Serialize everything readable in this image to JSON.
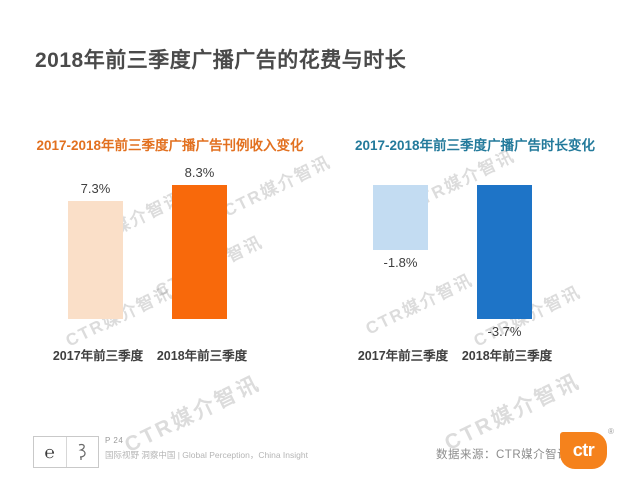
{
  "page": {
    "title": "2018年前三季度广播广告的花费与时长"
  },
  "watermark": {
    "text": "CTR媒介智讯"
  },
  "chart_data": [
    {
      "type": "bar",
      "title": "2017-2018年前三季度广播广告刊例收入变化",
      "title_color": "#e2701f",
      "categories": [
        "2017年前三季度",
        "2018年前三季度"
      ],
      "values": [
        7.3,
        8.3
      ],
      "value_labels": [
        "7.3%",
        "8.3%"
      ],
      "colors": [
        "#fadfc8",
        "#f8690b"
      ],
      "unit": "%",
      "legend": "none",
      "grid": "off",
      "ylim": [
        0,
        8.3
      ]
    },
    {
      "type": "bar",
      "title": "2017-2018年前三季度广播广告时长变化",
      "title_color": "#237a9b",
      "categories": [
        "2017年前三季度",
        "2018年前三季度"
      ],
      "values": [
        -1.8,
        -3.7
      ],
      "value_labels": [
        "-1.8%",
        "-3.7%"
      ],
      "colors": [
        "#c3dcf2",
        "#1e74c7"
      ],
      "unit": "%",
      "legend": "none",
      "grid": "off",
      "ylim": [
        -3.7,
        0
      ]
    }
  ],
  "footer": {
    "cert_glyph": "℮",
    "page_number": "P 24",
    "tagline": "国际视野 洞察中国 | Global Perception，China Insight",
    "source": "数据来源：CTR媒介智讯",
    "logo_text": "ctr",
    "logo_color": "#f5821c",
    "registered_mark": "®"
  }
}
